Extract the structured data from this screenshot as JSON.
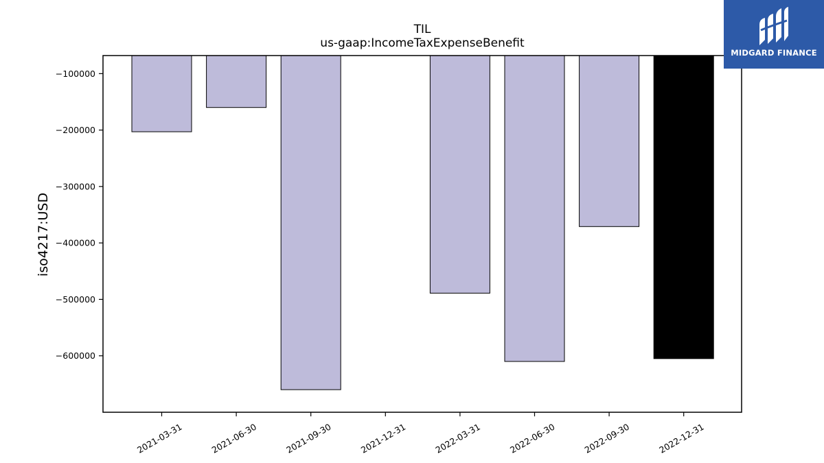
{
  "logo": {
    "text": "MIDGARD FINANCE"
  },
  "colors": {
    "bar": "#bebbda",
    "highlight_bar": "#000000",
    "logo_bg": "#2d5aa8"
  },
  "chart_data": {
    "type": "bar",
    "title": "TIL",
    "subtitle": "us-gaap:IncomeTaxExpenseBenefit",
    "xlabel": "",
    "ylabel": "iso4217:USD",
    "categories": [
      "2021-03-31",
      "2021-06-30",
      "2021-09-30",
      "2021-12-31",
      "2022-03-31",
      "2022-06-30",
      "2022-09-30",
      "2022-12-31"
    ],
    "values": [
      -203000,
      -160000,
      -660000,
      null,
      -489000,
      -610000,
      -371000,
      -605000
    ],
    "highlight_index": 7,
    "ylim": [
      -700000,
      -68000
    ],
    "yticks": [
      -100000,
      -200000,
      -300000,
      -400000,
      -500000,
      -600000
    ],
    "ytick_labels": [
      "−100000",
      "−200000",
      "−300000",
      "−400000",
      "−500000",
      "−600000"
    ],
    "grid": false,
    "legend": "none"
  }
}
